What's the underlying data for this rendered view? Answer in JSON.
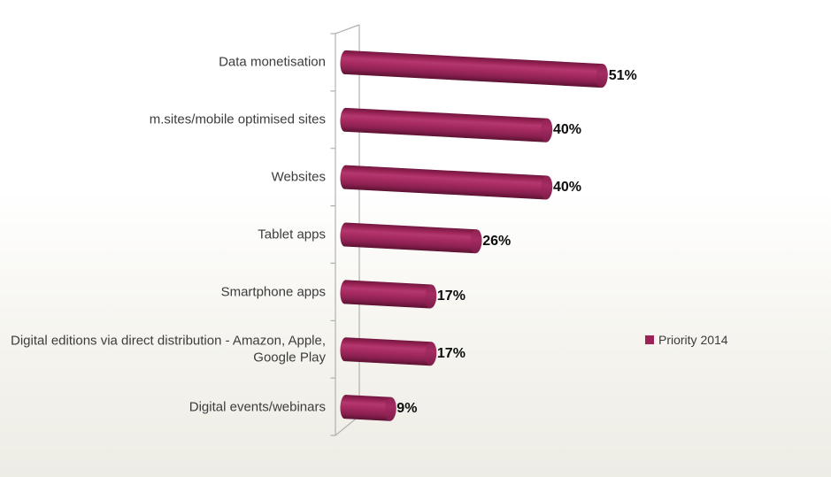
{
  "legend": {
    "label": "Priority 2014",
    "swatch_color": "#9c2256"
  },
  "chart_data": {
    "type": "bar",
    "orientation": "horizontal",
    "style": "3d-cylinder",
    "title": "",
    "xlabel": "",
    "ylabel": "",
    "categories": [
      "Data monetisation",
      "m.sites/mobile optimised sites",
      "Websites",
      "Tablet apps",
      "Smartphone apps",
      "Digital editions via direct distribution - Amazon, Apple, Google Play",
      "Digital events/webinars"
    ],
    "series": [
      {
        "name": "Priority 2014",
        "color": "#a2255e",
        "values": [
          51,
          40,
          40,
          26,
          17,
          17,
          9
        ]
      }
    ],
    "data_labels": [
      "51%",
      "40%",
      "40%",
      "26%",
      "17%",
      "17%",
      "9%"
    ],
    "value_suffix": "%",
    "xlim": [
      0,
      55
    ],
    "gridlines": false,
    "legend_position": "right"
  }
}
